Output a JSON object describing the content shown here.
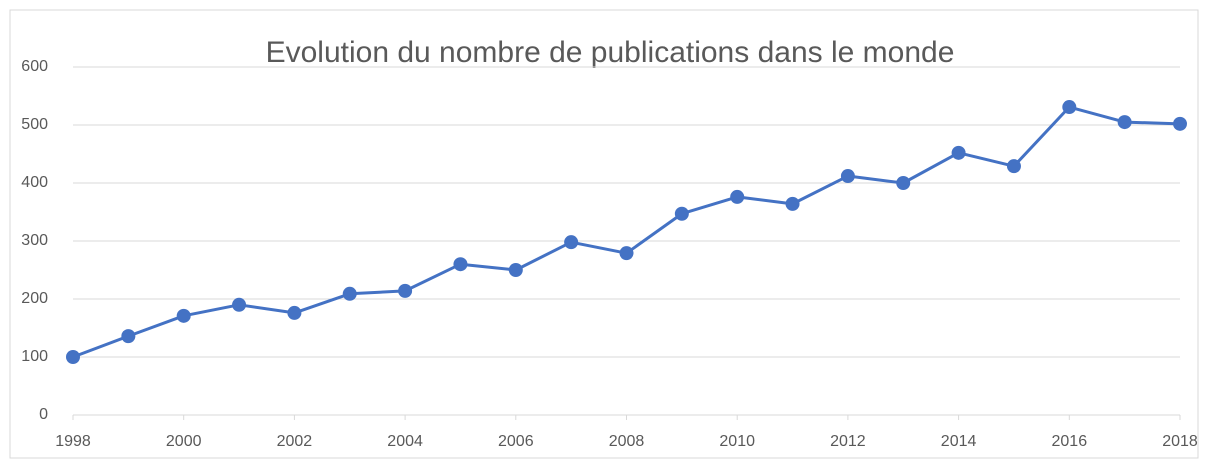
{
  "chart_data": {
    "type": "line",
    "title": "Evolution du nombre de publications dans le monde",
    "x": [
      1998,
      1999,
      2000,
      2001,
      2002,
      2003,
      2004,
      2005,
      2006,
      2007,
      2008,
      2009,
      2010,
      2011,
      2012,
      2013,
      2014,
      2015,
      2016,
      2017,
      2018
    ],
    "values": [
      100,
      136,
      171,
      190,
      176,
      209,
      214,
      260,
      250,
      298,
      279,
      347,
      376,
      364,
      412,
      400,
      452,
      429,
      531,
      505,
      502
    ],
    "color": "#4472c4",
    "xlim": [
      1998,
      2018
    ],
    "xticks": [
      1998,
      2000,
      2002,
      2004,
      2006,
      2008,
      2010,
      2012,
      2014,
      2016,
      2018
    ],
    "ylim": [
      0,
      600
    ],
    "yticks": [
      0,
      100,
      200,
      300,
      400,
      500,
      600
    ],
    "grid": true
  }
}
